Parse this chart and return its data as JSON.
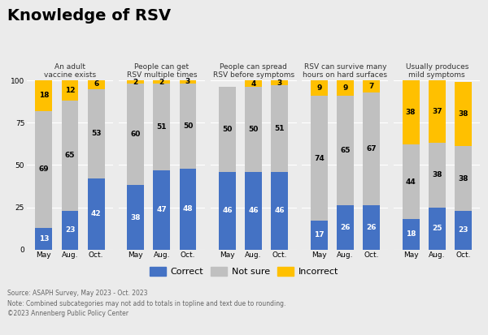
{
  "title": "Knowledge of RSV",
  "groups": [
    {
      "label": "An adult\nvaccine exists",
      "months": [
        "May",
        "Aug.",
        "Oct."
      ],
      "correct": [
        13,
        23,
        42
      ],
      "not_sure": [
        69,
        65,
        53
      ],
      "incorrect": [
        18,
        12,
        6
      ]
    },
    {
      "label": "People can get\nRSV multiple times",
      "months": [
        "May",
        "Aug.",
        "Oct."
      ],
      "correct": [
        38,
        47,
        48
      ],
      "not_sure": [
        60,
        51,
        50
      ],
      "incorrect": [
        2,
        2,
        3
      ]
    },
    {
      "label": "People can spread\nRSV before symptoms",
      "months": [
        "May",
        "Aug.",
        "Oct."
      ],
      "correct": [
        46,
        46,
        46
      ],
      "not_sure": [
        50,
        50,
        51
      ],
      "incorrect": [
        0,
        4,
        3
      ]
    },
    {
      "label": "RSV can survive many\nhours on hard surfaces",
      "months": [
        "May",
        "Aug.",
        "Oct."
      ],
      "correct": [
        17,
        26,
        26
      ],
      "not_sure": [
        74,
        65,
        67
      ],
      "incorrect": [
        9,
        9,
        7
      ]
    },
    {
      "label": "Usually produces\nmild symptoms",
      "months": [
        "May",
        "Aug.",
        "Oct."
      ],
      "correct": [
        18,
        25,
        23
      ],
      "not_sure": [
        44,
        38,
        38
      ],
      "incorrect": [
        38,
        37,
        38
      ]
    }
  ],
  "colors": {
    "correct": "#4472C4",
    "not_sure": "#C0C0C0",
    "incorrect": "#FFC000"
  },
  "background_color": "#EBEBEB",
  "yticks": [
    0,
    25,
    50,
    75,
    100
  ],
  "source_text": "Source: ASAPH Survey, May 2023 - Oct. 2023\nNote: Combined subcategories may not add to totals in topline and text due to rounding.\n©2023 Annenberg Public Policy Center",
  "legend_labels": [
    "Correct",
    "Not sure",
    "Incorrect"
  ],
  "title_fontsize": 14,
  "group_label_fontsize": 6.5,
  "bar_label_fontsize": 6.5,
  "tick_fontsize": 6.5,
  "source_fontsize": 5.5,
  "legend_fontsize": 8,
  "bar_width": 0.65
}
